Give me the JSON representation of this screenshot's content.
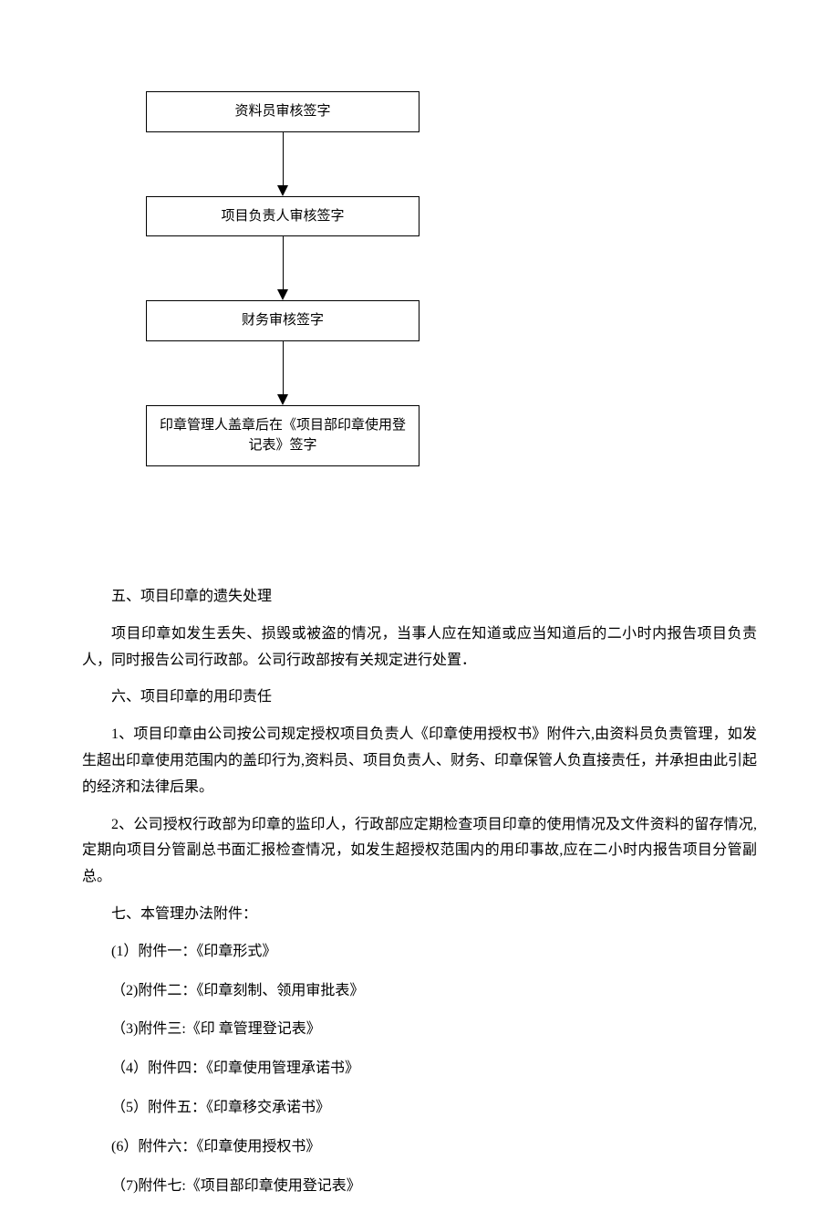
{
  "flowchart": {
    "boxes": [
      "资料员审核签字",
      "项目负责人审核签字",
      "财务审核签字",
      "印章管理人盖章后在《项目部印章使用登记表》签字"
    ],
    "box_border_color": "#000000",
    "arrow_color": "#000000",
    "background_color": "#ffffff",
    "font_size": 15
  },
  "sections": {
    "s5_title": "五、项目印章的遗失处理",
    "s5_para1": "项目印章如发生丢失、损毁或被盗的情况，当事人应在知道或应当知道后的二小时内报告项目负责人，同时报告公司行政部。公司行政部按有关规定进行处置．",
    "s6_title": "六、项目印章的用印责任",
    "s6_para1": "1、项目印章由公司按公司规定授权项目负责人《印章使用授权书》附件六,由资料员负责管理，如发生超出印章使用范围内的盖印行为,资料员、项目负责人、财务、印章保管人负直接责任，并承担由此引起的经济和法律后果。",
    "s6_para2": "2、公司授权行政部为印章的监印人，行政部应定期检查项目印章的使用情况及文件资料的留存情况,定期向项目分管副总书面汇报检查情况，如发生超授权范围内的用印事故,应在二小时内报告项目分管副总。",
    "s7_title": "七、本管理办法附件：",
    "attachments": [
      "(1）附件一：《印章形式》",
      "（2)附件二：《印章刻制、领用审批表》",
      "（3)附件三:《印 章管理登记表》",
      "（4）附件四：《印章使用管理承诺书》",
      "（5）附件五：《印章移交承诺书》",
      "(6）附件六：《印章使用授权书》",
      "（7)附件七:《项目部印章使用登记表》"
    ]
  },
  "styling": {
    "body_font_family": "SimSun",
    "body_font_size": 16,
    "text_color": "#000000",
    "background_color": "#ffffff",
    "line_height": 1.8
  }
}
